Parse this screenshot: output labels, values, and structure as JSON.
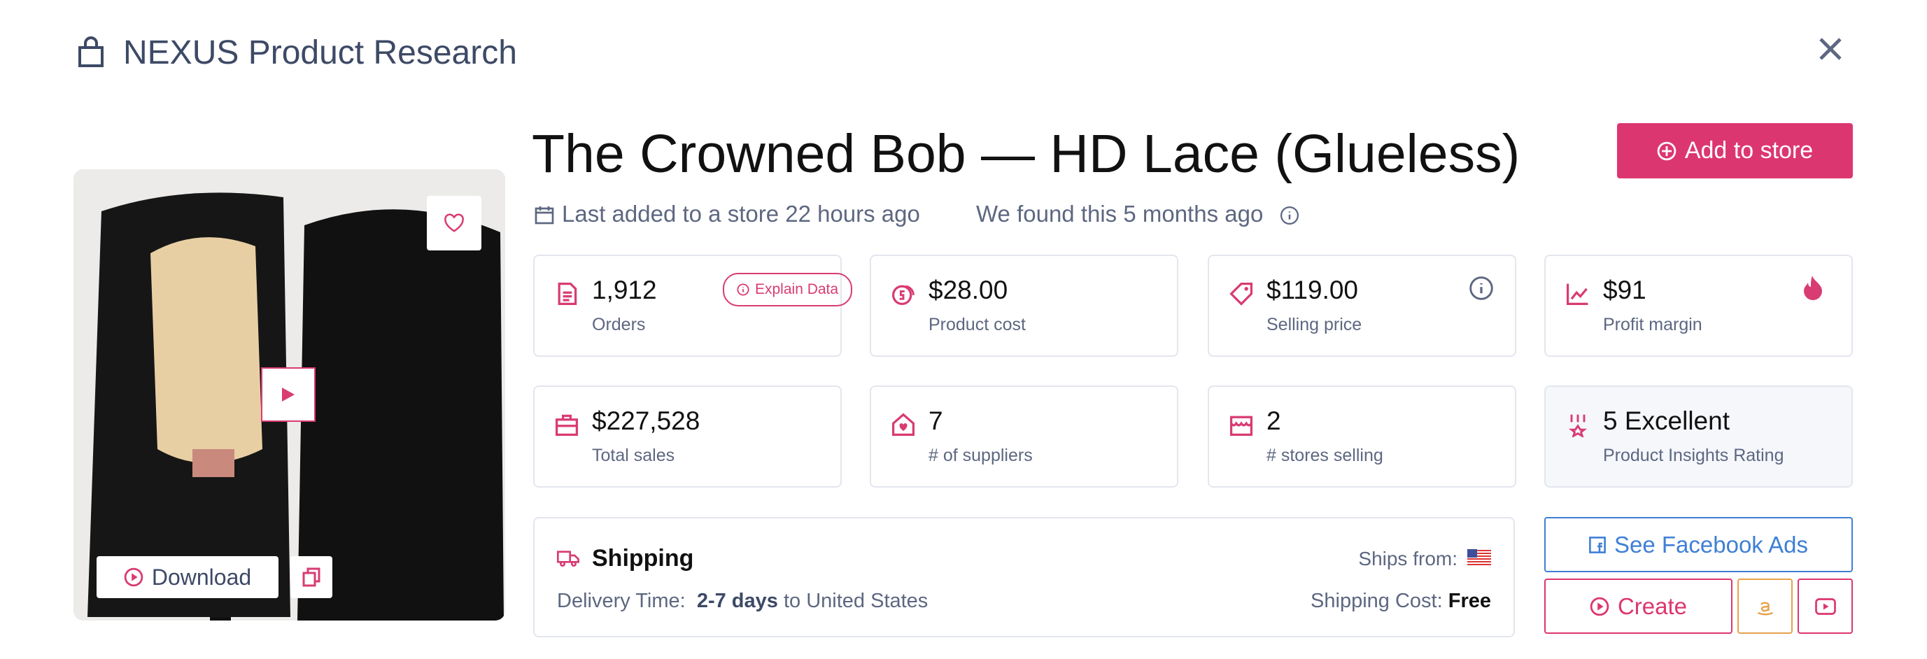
{
  "header": {
    "title": "NEXUS Product Research"
  },
  "product": {
    "title": "The Crowned Bob — HD Lace (Glueless)",
    "last_added": "Last added to a store 22 hours ago",
    "found": "We found this 5 months ago",
    "add_button": "Add to store",
    "download_button": "Download",
    "explain_button": "Explain Data"
  },
  "stats": [
    {
      "value": "1,912",
      "label": "Orders"
    },
    {
      "value": "$28.00",
      "label": "Product cost"
    },
    {
      "value": "$119.00",
      "label": "Selling price"
    },
    {
      "value": "$91",
      "label": "Profit margin"
    },
    {
      "value": "$227,528",
      "label": "Total sales"
    },
    {
      "value": "7",
      "label": "# of suppliers"
    },
    {
      "value": "2",
      "label": "# stores selling"
    },
    {
      "value": "5 Excellent",
      "label": "Product Insights Rating"
    }
  ],
  "shipping": {
    "title": "Shipping",
    "delivery_label": "Delivery Time:",
    "delivery_days": "2-7 days",
    "delivery_dest": "to United States",
    "ships_from_label": "Ships from:",
    "cost_label": "Shipping Cost:",
    "cost_value": "Free"
  },
  "actions": {
    "facebook": "See Facebook Ads",
    "create": "Create"
  }
}
